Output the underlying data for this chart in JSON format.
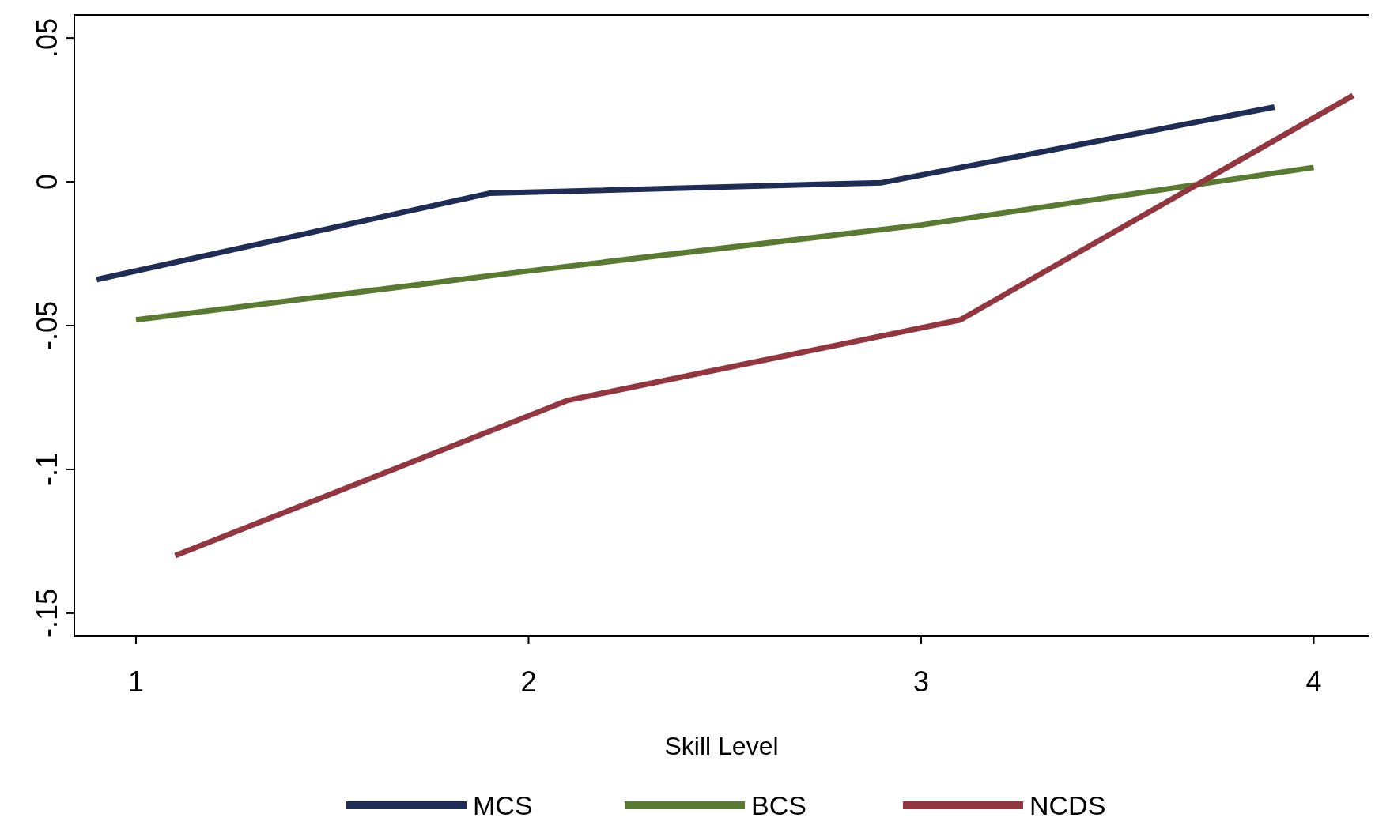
{
  "chart_data": {
    "type": "line",
    "xlabel": "Skill Level",
    "xlim": [
      0.843,
      4.14
    ],
    "xticks": [
      1,
      2,
      3,
      4
    ],
    "ylim": [
      -0.158,
      0.058
    ],
    "yticks": [
      {
        "value": 0.05,
        "label": ".05"
      },
      {
        "value": 0,
        "label": "0"
      },
      {
        "value": -0.05,
        "label": "-.05"
      },
      {
        "value": -0.1,
        "label": "-.1"
      },
      {
        "value": -0.15,
        "label": "-.15"
      }
    ],
    "legend": "bottom",
    "grid": false,
    "line_style": "solid",
    "series": [
      {
        "name": "MCS",
        "color": "#1f2d56",
        "x": [
          0.9,
          1.9,
          2.9,
          3.9
        ],
        "values": [
          -0.034,
          -0.004,
          -0.0003,
          0.026
        ]
      },
      {
        "name": "BCS",
        "color": "#5a7a32",
        "x": [
          1,
          2,
          3,
          4
        ],
        "values": [
          -0.048,
          -0.031,
          -0.015,
          0.005
        ]
      },
      {
        "name": "NCDS",
        "color": "#93363f",
        "x": [
          1.1,
          2.1,
          3.1,
          4.1
        ],
        "values": [
          -0.13,
          -0.076,
          -0.048,
          0.03
        ]
      }
    ]
  }
}
